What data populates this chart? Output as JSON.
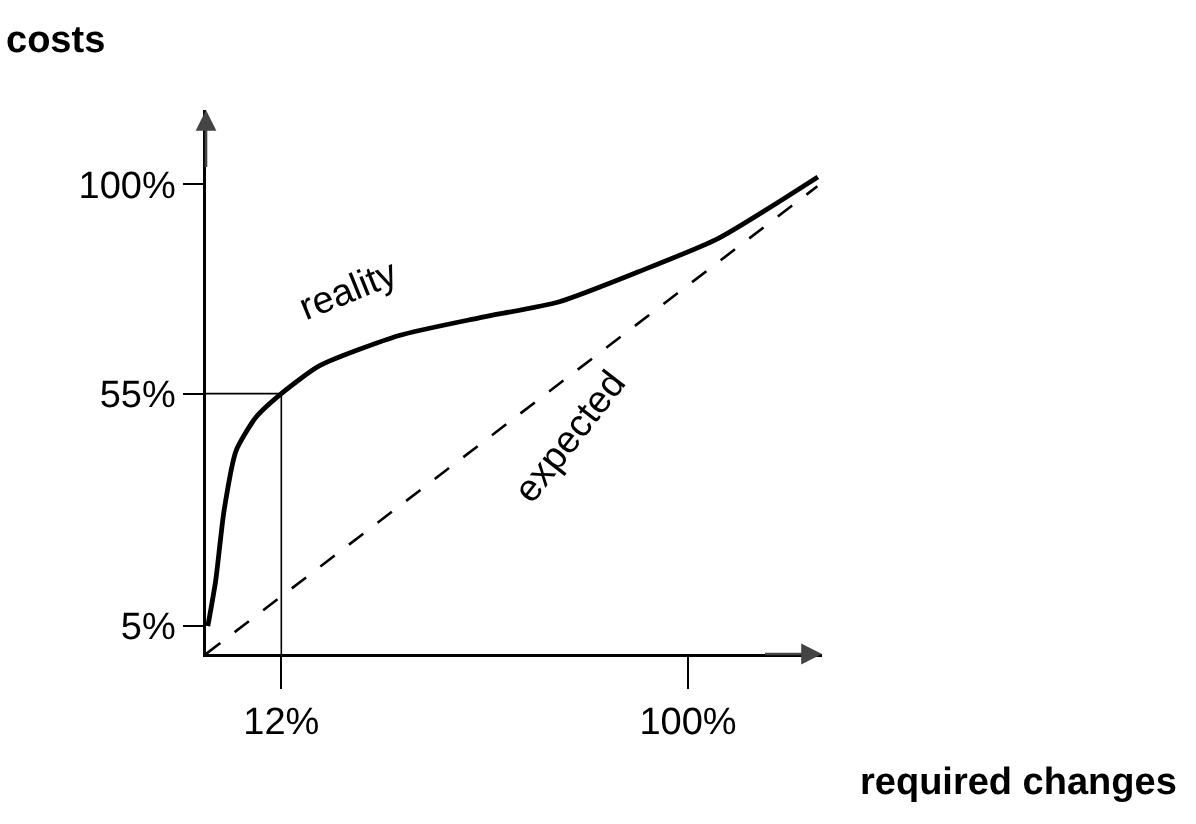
{
  "chart_data": {
    "type": "line",
    "xlabel": "required changes",
    "ylabel": "costs",
    "xlim": [
      -4.3,
      129
    ],
    "ylim": [
      -1,
      116
    ],
    "xticks": [
      {
        "value": 12,
        "label": "12%"
      },
      {
        "value": 100,
        "label": "100%"
      }
    ],
    "yticks": [
      {
        "value": 5,
        "label": "5%"
      },
      {
        "value": 55,
        "label": "55%"
      },
      {
        "value": 100,
        "label": "100%"
      }
    ],
    "grid": false,
    "legend": false,
    "marker": "none",
    "series": [
      {
        "name": "reality",
        "color": "#000000",
        "line_style": "solid",
        "x": [
          -3.9,
          -2.2,
          -0.4,
          2.2,
          6.5,
          12,
          20.3,
          37.5,
          54.8,
          72,
          89.3,
          106.6,
          128.1
        ],
        "values": [
          5,
          14.8,
          29.8,
          42.7,
          49.9,
          55,
          61,
          67.5,
          71.3,
          74.7,
          81.2,
          88.4,
          101.6
        ]
      },
      {
        "name": "expected",
        "color": "#000000",
        "line_style": "dashed",
        "x": [
          -4.3,
          128
        ],
        "values": [
          -1,
          99.6
        ]
      }
    ],
    "ref_lines": [
      {
        "axis": "x",
        "value": 12
      },
      {
        "axis": "y",
        "value": 55
      }
    ]
  }
}
